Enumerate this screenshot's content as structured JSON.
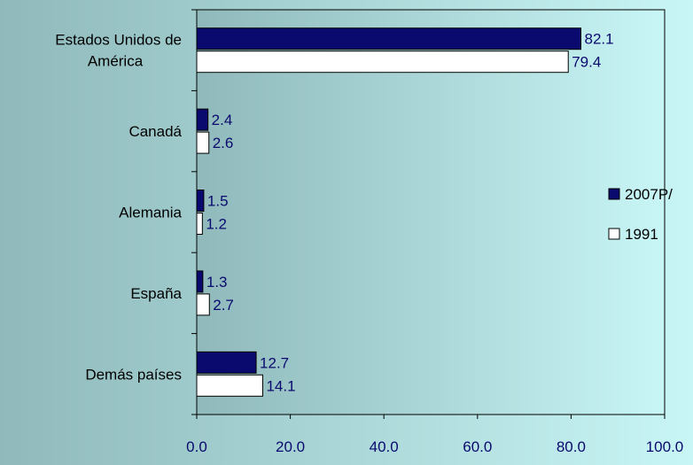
{
  "chart_data": {
    "type": "bar",
    "orientation": "horizontal",
    "categories": [
      "Estados Unidos de América",
      "Canadá",
      "Alemania",
      "España",
      "Demás países"
    ],
    "category_lines": [
      [
        "Estados Unidos de",
        "América"
      ],
      [
        "Canadá"
      ],
      [
        "Alemania"
      ],
      [
        "España"
      ],
      [
        "Demás países"
      ]
    ],
    "series": [
      {
        "name": "2007P/",
        "values": [
          82.1,
          2.4,
          1.5,
          1.3,
          12.7
        ],
        "labels": [
          "82.1",
          "2.4",
          "1.5",
          "1.3",
          "12.7"
        ],
        "color": "#0a0a6e"
      },
      {
        "name": "1991",
        "values": [
          79.4,
          2.6,
          1.2,
          2.7,
          14.1
        ],
        "labels": [
          "79.4",
          "2.6",
          "1.2",
          "2.7",
          "14.1"
        ],
        "color": "#ffffff"
      }
    ],
    "title": "",
    "xlabel": "",
    "ylabel": "",
    "xlim": [
      0,
      100
    ],
    "xticks": [
      "0.0",
      "20.0",
      "40.0",
      "60.0",
      "80.0",
      "100.0"
    ],
    "grid": false,
    "legend_position": "right",
    "label_color": "#0a0a6e",
    "background_gradient": [
      "#8fb9bb",
      "#c8f5f5"
    ]
  }
}
